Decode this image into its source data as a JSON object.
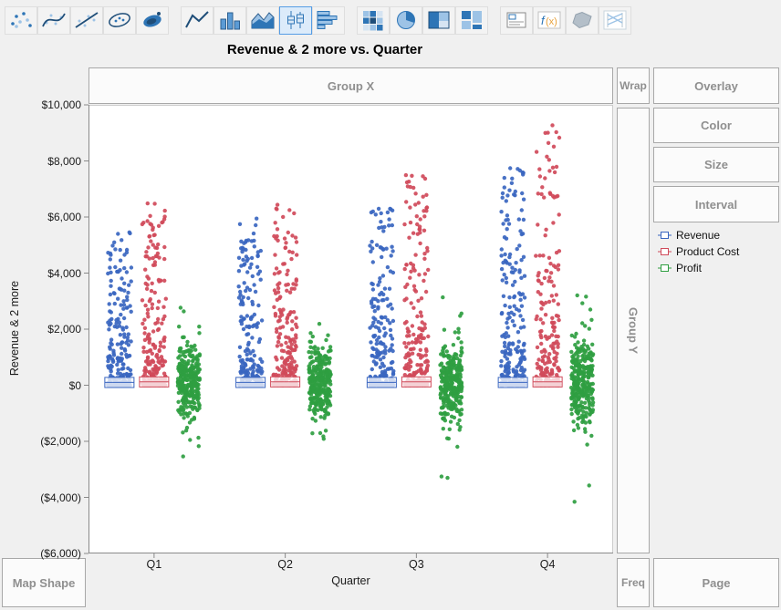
{
  "toolbar": {
    "icons": [
      {
        "name": "points"
      },
      {
        "name": "smoother"
      },
      {
        "name": "line-of-fit"
      },
      {
        "name": "ellipse"
      },
      {
        "name": "contour"
      },
      {
        "name": "line"
      },
      {
        "name": "bar"
      },
      {
        "name": "area"
      },
      {
        "name": "box-plot",
        "selected": true
      },
      {
        "name": "histogram"
      },
      {
        "name": "heatmap"
      },
      {
        "name": "pie"
      },
      {
        "name": "treemap"
      },
      {
        "name": "mosaic"
      },
      {
        "name": "caption-box"
      },
      {
        "name": "formula"
      },
      {
        "name": "map-shapes"
      },
      {
        "name": "parallel-plot"
      }
    ]
  },
  "zones": {
    "group_x": "Group X",
    "wrap": "Wrap",
    "overlay": "Overlay",
    "color": "Color",
    "size": "Size",
    "interval": "Interval",
    "group_y": "Group Y",
    "map_shape": "Map Shape",
    "freq": "Freq",
    "page": "Page"
  },
  "chart_data": {
    "type": "scatter",
    "variant": "jittered-strip-with-box",
    "title": "Revenue & 2 more vs. Quarter",
    "xlabel": "Quarter",
    "ylabel": "Revenue & 2 more",
    "categories": [
      "Q1",
      "Q2",
      "Q3",
      "Q4"
    ],
    "ylim": [
      -6000,
      10000
    ],
    "grid": false,
    "legend_position": "right",
    "yticks": [
      {
        "value": 10000,
        "label": "$10,000"
      },
      {
        "value": 8000,
        "label": "$8,000"
      },
      {
        "value": 6000,
        "label": "$6,000"
      },
      {
        "value": 4000,
        "label": "$4,000"
      },
      {
        "value": 2000,
        "label": "$2,000"
      },
      {
        "value": 0,
        "label": "$0"
      },
      {
        "value": -2000,
        "label": "($2,000)"
      },
      {
        "value": -4000,
        "label": "($4,000)"
      },
      {
        "value": -6000,
        "label": "($6,000)"
      }
    ],
    "series": [
      {
        "name": "Revenue",
        "color": "#3a66c0",
        "offset": -38,
        "jitter": 13,
        "shape": "skew",
        "box": {
          "q1": -80,
          "median": 100,
          "q3": 280
        },
        "clusters": [
          {
            "count": 240,
            "min": 0,
            "max": 5500,
            "k": 3.0
          },
          {
            "count": 240,
            "min": 0,
            "max": 6000,
            "k": 3.0
          },
          {
            "count": 240,
            "min": 0,
            "max": 6300,
            "k": 3.0
          },
          {
            "count": 260,
            "min": 0,
            "max": 7800,
            "k": 2.8
          }
        ]
      },
      {
        "name": "Product Cost",
        "color": "#d04a5a",
        "offset": 0,
        "jitter": 13,
        "shape": "skew",
        "box": {
          "q1": -60,
          "median": 120,
          "q3": 300
        },
        "clusters": [
          {
            "count": 240,
            "min": 0,
            "max": 6500,
            "k": 3.2
          },
          {
            "count": 240,
            "min": 0,
            "max": 6700,
            "k": 3.2
          },
          {
            "count": 240,
            "min": 0,
            "max": 7500,
            "k": 3.4
          },
          {
            "count": 260,
            "min": 0,
            "max": 9300,
            "k": 3.4
          }
        ]
      },
      {
        "name": "Profit",
        "color": "#2f9e41",
        "offset": 38,
        "jitter": 12,
        "shape": "normal",
        "clusters": [
          {
            "count": 300,
            "min": -2600,
            "max": 2800,
            "center": 100,
            "spread": 1100,
            "tail": 0.06
          },
          {
            "count": 300,
            "min": -2050,
            "max": 2600,
            "center": 100,
            "spread": 1050,
            "tail": 0.06
          },
          {
            "count": 300,
            "min": -3400,
            "max": 3400,
            "center": 50,
            "spread": 1200,
            "tail": 0.07
          },
          {
            "count": 300,
            "min": -4200,
            "max": 3700,
            "center": 50,
            "spread": 1250,
            "tail": 0.07
          }
        ]
      }
    ]
  }
}
